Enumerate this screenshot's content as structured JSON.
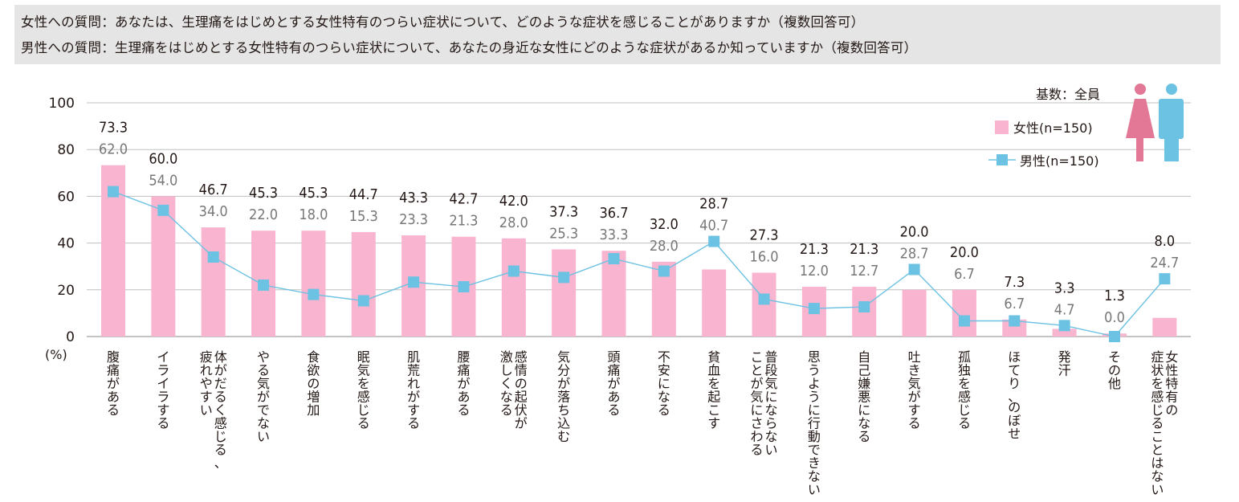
{
  "questions": {
    "female": "女性への質問：あなたは、生理痛をはじめとする女性特有のつらい症状について、どのような症状を感じることがありますか（複数回答可）",
    "male": "男性への質問：生理痛をはじめとする女性特有のつらい症状について、あなたの身近な女性にどのような症状があるか知っていますか（複数回答可）"
  },
  "base_label": "基数：全員",
  "unit_label": "(%)",
  "colors": {
    "female_bar": "#f9b4cf",
    "male_line": "#6cc2e2",
    "female_icon": "#e27796",
    "male_icon": "#6cc2e2",
    "male_label_text": "#777777",
    "question_bg": "#e5e5e5"
  },
  "icons": [
    "female-person-icon",
    "male-person-icon"
  ],
  "chart_data": {
    "type": "bar",
    "categories": [
      "腹痛がある",
      "イライラする",
      "体がだるく感じる、疲れやすい",
      "やる気がでない",
      "食欲の増加",
      "眠気を感じる",
      "肌荒れがする",
      "腰痛がある",
      "感情の起伏が激しくなる",
      "気分が落ち込む",
      "頭痛がある",
      "不安になる",
      "貧血を起こす",
      "普段気にならないことが気にさわる",
      "思うように行動できない",
      "自己嫌悪になる",
      "吐き気がする",
      "孤独を感じる",
      "ほてり、のぼせ",
      "発汗",
      "その他",
      "女性特有の症状を感じることはない"
    ],
    "category_lines": [
      [
        "腹痛がある"
      ],
      [
        "イライラする"
      ],
      [
        "体がだるく感じる、",
        "疲れやすい"
      ],
      [
        "やる気がでない"
      ],
      [
        "食欲の増加"
      ],
      [
        "眠気を感じる"
      ],
      [
        "肌荒れがする"
      ],
      [
        "腰痛がある"
      ],
      [
        "感情の起伏が",
        "激しくなる"
      ],
      [
        "気分が落ち込む"
      ],
      [
        "頭痛がある"
      ],
      [
        "不安になる"
      ],
      [
        "貧血を起こす"
      ],
      [
        "普段気にならない",
        "ことが気にさわる"
      ],
      [
        "思うように行動できない"
      ],
      [
        "自己嫌悪になる"
      ],
      [
        "吐き気がする"
      ],
      [
        "孤独を感じる"
      ],
      [
        "ほてり、のぼせ"
      ],
      [
        "発汗"
      ],
      [
        "その他"
      ],
      [
        "女性特有の",
        "症状を感じることはない"
      ]
    ],
    "series": [
      {
        "name": "女性(n=150)",
        "type": "bar",
        "values": [
          73.3,
          60.0,
          46.7,
          45.3,
          45.3,
          44.7,
          43.3,
          42.7,
          42.0,
          37.3,
          36.7,
          32.0,
          28.7,
          27.3,
          21.3,
          21.3,
          20.0,
          20.0,
          7.3,
          3.3,
          1.3,
          8.0
        ],
        "labels": [
          "73.3",
          "60.0",
          "46.7",
          "45.3",
          "45.3",
          "44.7",
          "43.3",
          "42.7",
          "42.0",
          "37.3",
          "36.7",
          "32.0",
          "28.7",
          "27.3",
          "21.3",
          "21.3",
          "20.0",
          "20.0",
          "7.3",
          "3.3",
          "1.3",
          "8.0"
        ]
      },
      {
        "name": "男性(n=150)",
        "type": "line",
        "values": [
          62.0,
          54.0,
          34.0,
          22.0,
          18.0,
          15.3,
          23.3,
          21.3,
          28.0,
          25.3,
          33.3,
          28.0,
          40.7,
          16.0,
          12.0,
          12.7,
          28.7,
          6.7,
          6.7,
          4.7,
          0.0,
          24.7
        ],
        "labels": [
          "62.0",
          "54.0",
          "34.0",
          "22.0",
          "18.0",
          "15.3",
          "23.3",
          "21.3",
          "28.0",
          "25.3",
          "33.3",
          "28.0",
          "40.7",
          "16.0",
          "12.0",
          "12.7",
          "28.7",
          "6.7",
          "6.7",
          "4.7",
          "0.0",
          "24.7"
        ]
      }
    ],
    "yticks": [
      "0",
      "20",
      "40",
      "60",
      "80",
      "100"
    ],
    "ylim": [
      0,
      100
    ],
    "grid": true,
    "legend": "top-right"
  }
}
